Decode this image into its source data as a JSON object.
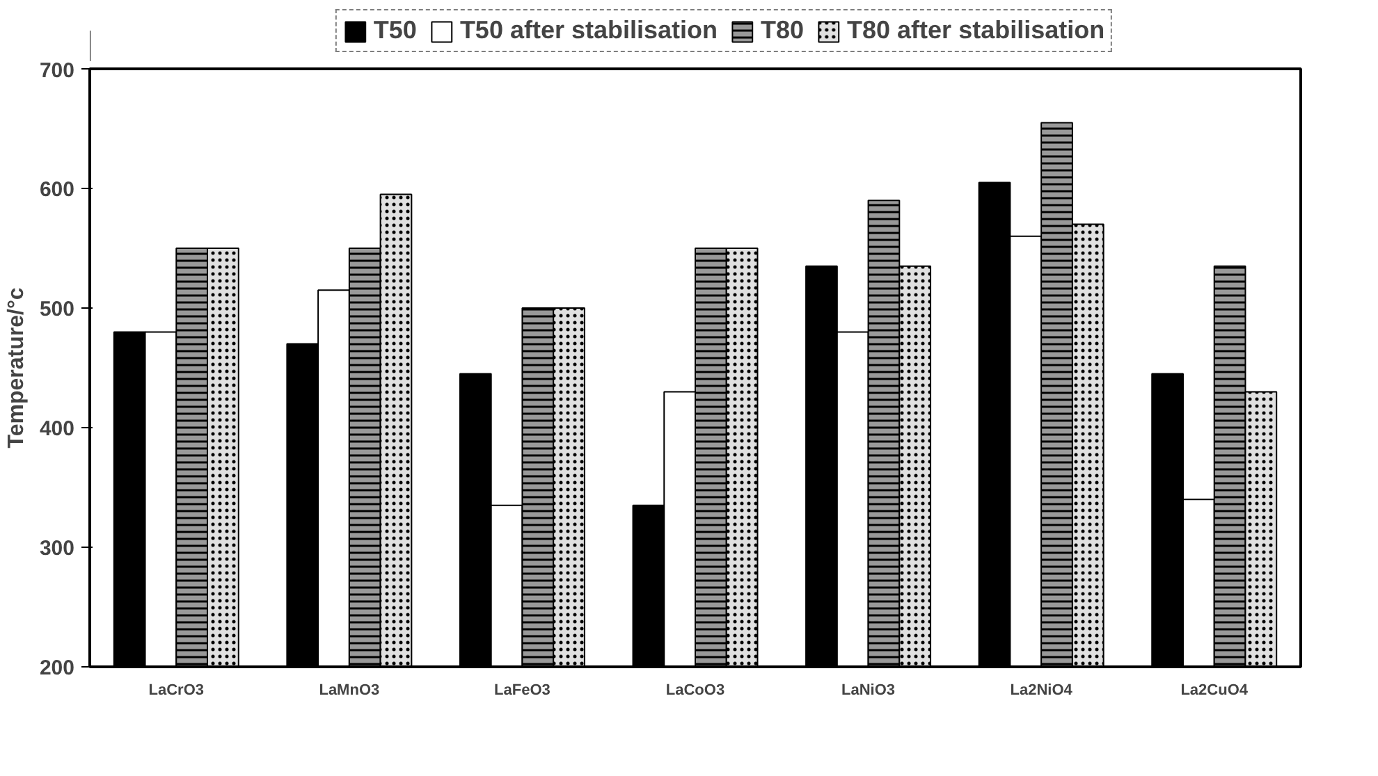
{
  "chart_data": {
    "type": "bar",
    "ylabel": "Temperature/°c",
    "categories": [
      "LaCrO3",
      "LaMnO3",
      "LaFeO3",
      "LaCoO3",
      "LaNiO3",
      "La2NiO4",
      "La2CuO4"
    ],
    "series": [
      {
        "name": "T50",
        "color": "#000000",
        "values": [
          480,
          470,
          445,
          335,
          535,
          605,
          445
        ]
      },
      {
        "name": "T50 after stabilisation",
        "color": "#ffffff",
        "values": [
          480,
          515,
          335,
          430,
          480,
          560,
          340
        ]
      },
      {
        "name": "T80",
        "color": "#999999",
        "values": [
          550,
          550,
          500,
          550,
          590,
          655,
          535
        ]
      },
      {
        "name": "T80 after stabilisation",
        "color": "#e0e0e0",
        "values": [
          550,
          595,
          500,
          550,
          535,
          570,
          430
        ]
      }
    ],
    "ylim": [
      200,
      700
    ],
    "yticks": [
      200,
      300,
      400,
      500,
      600,
      700
    ],
    "grid": false,
    "legend": "top"
  }
}
